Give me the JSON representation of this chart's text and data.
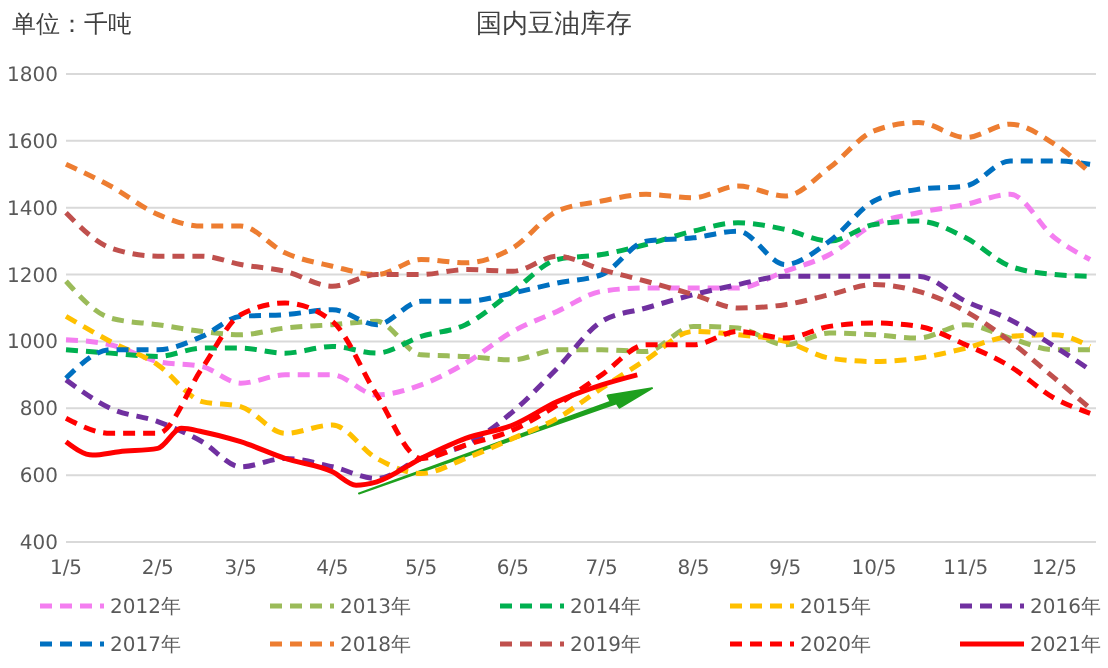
{
  "chart_data": {
    "type": "line",
    "title": "国内豆油库存",
    "ylabel": "单位：千吨",
    "x": [
      "--01-05",
      "--01-20",
      "--02-05",
      "--02-20",
      "--03-05",
      "--03-20",
      "--04-05",
      "--04-20",
      "--05-05",
      "--05-20",
      "--06-05",
      "--06-20",
      "--07-05",
      "--07-20",
      "--08-05",
      "--08-20",
      "--09-05",
      "--09-20",
      "--10-05",
      "--10-20",
      "--11-05",
      "--11-20",
      "--12-05",
      "--12-17"
    ],
    "xlim": [
      "--01-05",
      "--12-19"
    ],
    "xticks": [
      {
        "value": "--01-05",
        "label": "1/5"
      },
      {
        "value": "--02-05",
        "label": "2/5"
      },
      {
        "value": "--03-05",
        "label": "3/5"
      },
      {
        "value": "--04-05",
        "label": "4/5"
      },
      {
        "value": "--05-05",
        "label": "5/5"
      },
      {
        "value": "--06-05",
        "label": "6/5"
      },
      {
        "value": "--07-05",
        "label": "7/5"
      },
      {
        "value": "--08-05",
        "label": "8/5"
      },
      {
        "value": "--09-05",
        "label": "9/5"
      },
      {
        "value": "--10-05",
        "label": "10/5"
      },
      {
        "value": "--11-05",
        "label": "11/5"
      },
      {
        "value": "--12-05",
        "label": "12/5"
      }
    ],
    "ylim": [
      400,
      1800
    ],
    "yticks": [
      400,
      600,
      800,
      1000,
      1200,
      1400,
      1600,
      1800
    ],
    "grid": "y",
    "legend": "bottom",
    "marker": "none",
    "series": [
      {
        "name": "2012年",
        "color": "#f47ef0",
        "line_style": "dashed",
        "values": [
          1005,
          990,
          940,
          925,
          875,
          900,
          900,
          840,
          870,
          935,
          1030,
          1090,
          1150,
          1160,
          1160,
          1160,
          1210,
          1260,
          1350,
          1385,
          1410,
          1440,
          1310,
          1245
        ]
      },
      {
        "name": "2013年",
        "color": "#9bbb59",
        "line_style": "dashed",
        "values": [
          1180,
          1070,
          1050,
          1030,
          1020,
          1040,
          1050,
          1060,
          960,
          955,
          945,
          975,
          975,
          970,
          1045,
          1040,
          990,
          1025,
          1020,
          1010,
          1050,
          1010,
          975,
          975
        ]
      },
      {
        "name": "2014年",
        "color": "#00b050",
        "line_style": "dashed",
        "values": [
          975,
          965,
          955,
          980,
          980,
          965,
          985,
          965,
          1015,
          1050,
          1150,
          1245,
          1260,
          1290,
          1330,
          1355,
          1335,
          1300,
          1350,
          1360,
          1310,
          1225,
          1200,
          1195
        ]
      },
      {
        "name": "2015年",
        "color": "#ffc000",
        "line_style": "dashed",
        "values": [
          1075,
          1000,
          930,
          820,
          805,
          725,
          750,
          650,
          605,
          650,
          710,
          770,
          860,
          945,
          1030,
          1020,
          1000,
          950,
          940,
          950,
          980,
          1015,
          1020,
          985
        ]
      },
      {
        "name": "2016年",
        "color": "#7030a0",
        "line_style": "dashed",
        "values": [
          885,
          800,
          760,
          700,
          625,
          650,
          625,
          590,
          650,
          690,
          790,
          920,
          1060,
          1100,
          1140,
          1170,
          1195,
          1195,
          1195,
          1195,
          1120,
          1065,
          985,
          915
        ]
      },
      {
        "name": "2017年",
        "color": "#0070c0",
        "line_style": "dashed",
        "values": [
          890,
          975,
          975,
          1015,
          1075,
          1080,
          1095,
          1050,
          1120,
          1120,
          1145,
          1175,
          1200,
          1300,
          1310,
          1330,
          1230,
          1300,
          1420,
          1455,
          1465,
          1540,
          1540,
          1530
        ]
      },
      {
        "name": "2018年",
        "color": "#ed7d31",
        "line_style": "dashed",
        "values": [
          1530,
          1465,
          1380,
          1345,
          1345,
          1265,
          1225,
          1200,
          1245,
          1235,
          1280,
          1390,
          1420,
          1440,
          1430,
          1465,
          1435,
          1520,
          1630,
          1655,
          1610,
          1650,
          1590,
          1505
        ]
      },
      {
        "name": "2019年",
        "color": "#c0504d",
        "line_style": "dashed",
        "values": [
          1385,
          1280,
          1255,
          1255,
          1230,
          1210,
          1165,
          1200,
          1200,
          1215,
          1210,
          1255,
          1215,
          1180,
          1140,
          1100,
          1110,
          1140,
          1170,
          1150,
          1090,
          1000,
          890,
          800
        ]
      },
      {
        "name": "2020年",
        "color": "#ff0000",
        "line_style": "dashed",
        "values": [
          770,
          725,
          725,
          920,
          1080,
          1115,
          1060,
          840,
          650,
          690,
          735,
          810,
          900,
          990,
          990,
          1030,
          1010,
          1045,
          1055,
          1045,
          990,
          925,
          830,
          785
        ]
      },
      {
        "name": "2021年",
        "color": "#ff0000",
        "line_style": "solid",
        "x": [
          "--01-05",
          "--01-14",
          "--01-23",
          "--02-05",
          "--02-13",
          "--02-20",
          "--03-05",
          "--03-20",
          "--04-05",
          "--04-13",
          "--04-20",
          "--05-05",
          "--05-20",
          "--06-05",
          "--06-20",
          "--07-05",
          "--07-17"
        ],
        "values": [
          700,
          660,
          670,
          680,
          740,
          730,
          700,
          650,
          610,
          570,
          580,
          650,
          710,
          750,
          820,
          870,
          900
        ]
      }
    ]
  }
}
